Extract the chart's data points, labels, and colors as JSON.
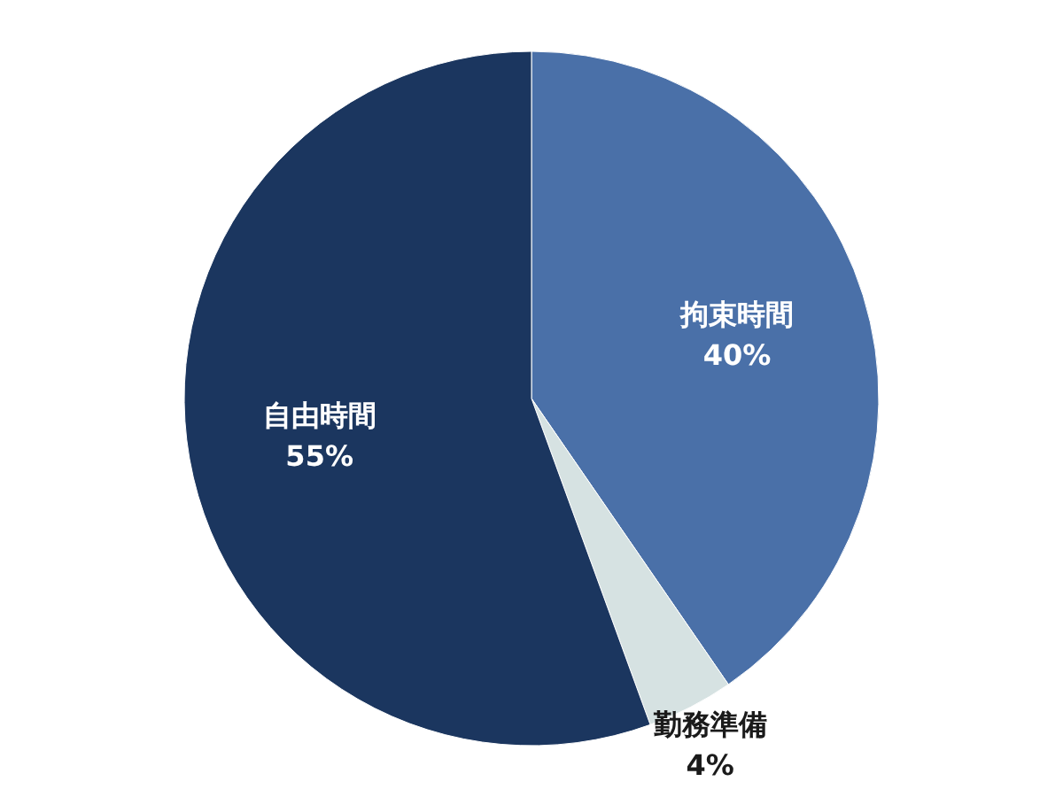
{
  "chart_data": {
    "type": "pie",
    "categories": [
      "拘束時間",
      "勤務準備",
      "自由時間"
    ],
    "values": [
      40,
      4,
      55
    ],
    "colors": [
      "#4a70a8",
      "#d6e2e2",
      "#1b365f"
    ],
    "value_labels": [
      "40%",
      "4%",
      "55%"
    ]
  }
}
